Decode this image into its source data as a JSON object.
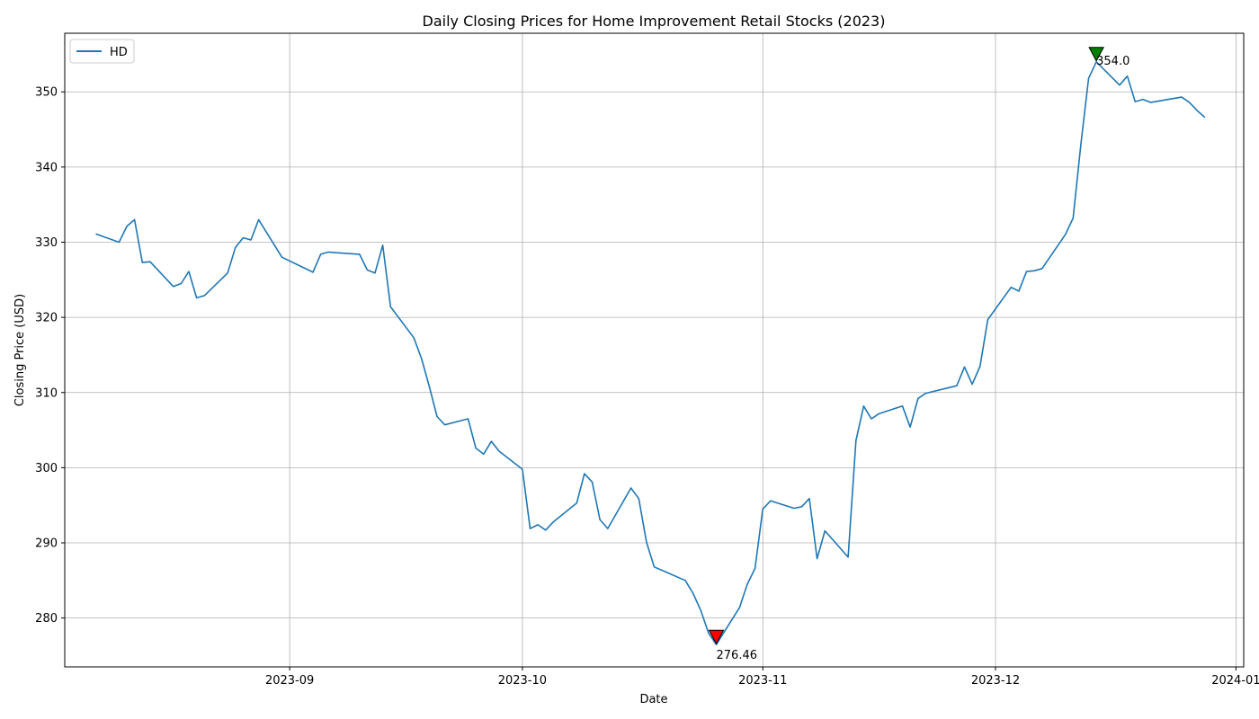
{
  "chart_data": {
    "type": "line",
    "title": "Daily Closing Prices for Home Improvement Retail Stocks (2023)",
    "xlabel": "Date",
    "ylabel": "Closing Price (USD)",
    "xlim": [
      "2023-08-03",
      "2024-01-02"
    ],
    "ylim": [
      273.5,
      357.8
    ],
    "xticks": [
      {
        "date": "2023-09-01",
        "label": "2023-09"
      },
      {
        "date": "2023-10-01",
        "label": "2023-10"
      },
      {
        "date": "2023-11-01",
        "label": "2023-11"
      },
      {
        "date": "2023-12-01",
        "label": "2023-12"
      },
      {
        "date": "2024-01-01",
        "label": "2024-01"
      }
    ],
    "yticks": [
      280,
      290,
      300,
      310,
      320,
      330,
      340,
      350
    ],
    "grid": true,
    "legend_position": "top-left",
    "series": [
      {
        "name": "HD",
        "color": "#1f77b4",
        "x": [
          "2023-08-07",
          "2023-08-10",
          "2023-08-11",
          "2023-08-12",
          "2023-08-13",
          "2023-08-14",
          "2023-08-17",
          "2023-08-18",
          "2023-08-19",
          "2023-08-20",
          "2023-08-21",
          "2023-08-24",
          "2023-08-25",
          "2023-08-26",
          "2023-08-27",
          "2023-08-28",
          "2023-08-31",
          "2023-09-04",
          "2023-09-05",
          "2023-09-06",
          "2023-09-07",
          "2023-09-10",
          "2023-09-11",
          "2023-09-12",
          "2023-09-13",
          "2023-09-14",
          "2023-09-17",
          "2023-09-18",
          "2023-09-19",
          "2023-09-20",
          "2023-09-21",
          "2023-09-24",
          "2023-09-25",
          "2023-09-26",
          "2023-09-27",
          "2023-09-28",
          "2023-10-01",
          "2023-10-02",
          "2023-10-03",
          "2023-10-04",
          "2023-10-05",
          "2023-10-08",
          "2023-10-09",
          "2023-10-10",
          "2023-10-11",
          "2023-10-12",
          "2023-10-15",
          "2023-10-16",
          "2023-10-17",
          "2023-10-18",
          "2023-10-22",
          "2023-10-23",
          "2023-10-24",
          "2023-10-25",
          "2023-10-26",
          "2023-10-29",
          "2023-10-30",
          "2023-10-31",
          "2023-11-01",
          "2023-11-02",
          "2023-11-05",
          "2023-11-06",
          "2023-11-07",
          "2023-11-08",
          "2023-11-09",
          "2023-11-12",
          "2023-11-13",
          "2023-11-14",
          "2023-11-15",
          "2023-11-16",
          "2023-11-19",
          "2023-11-20",
          "2023-11-21",
          "2023-11-22",
          "2023-11-26",
          "2023-11-27",
          "2023-11-28",
          "2023-11-29",
          "2023-11-30",
          "2023-12-03",
          "2023-12-04",
          "2023-12-05",
          "2023-12-06",
          "2023-12-07",
          "2023-12-10",
          "2023-12-11",
          "2023-12-12",
          "2023-12-13",
          "2023-12-14",
          "2023-12-17",
          "2023-12-18",
          "2023-12-19",
          "2023-12-20",
          "2023-12-21",
          "2023-12-25",
          "2023-12-26",
          "2023-12-27",
          "2023-12-28"
        ],
        "values": [
          331.1,
          330.0,
          332.1,
          333.0,
          327.3,
          327.4,
          324.1,
          324.5,
          326.1,
          322.6,
          322.9,
          325.9,
          329.3,
          330.6,
          330.3,
          333.0,
          328.0,
          326.0,
          328.4,
          328.7,
          328.6,
          328.4,
          326.3,
          325.9,
          329.6,
          321.4,
          317.3,
          314.5,
          310.8,
          306.8,
          305.7,
          306.5,
          302.6,
          301.8,
          303.5,
          302.2,
          299.8,
          291.9,
          292.4,
          291.7,
          292.8,
          295.3,
          299.2,
          298.1,
          293.1,
          291.9,
          297.3,
          295.9,
          290.1,
          286.8,
          285.0,
          283.3,
          281.0,
          278.0,
          276.46,
          281.4,
          284.5,
          286.6,
          294.5,
          295.6,
          294.6,
          294.8,
          295.9,
          287.9,
          291.6,
          288.1,
          303.6,
          308.2,
          306.5,
          307.2,
          308.2,
          305.4,
          309.2,
          309.9,
          310.9,
          313.4,
          311.1,
          313.5,
          319.7,
          324.0,
          323.5,
          326.1,
          326.2,
          326.5,
          331.0,
          333.2,
          343.0,
          351.8,
          354.0,
          350.9,
          352.1,
          348.7,
          349.0,
          348.6,
          349.3,
          348.6,
          347.5,
          346.6
        ]
      }
    ],
    "annotations": [
      {
        "type": "max",
        "date": "2023-12-14",
        "value": 354.0,
        "label": "354.0",
        "color": "#008000"
      },
      {
        "type": "min",
        "date": "2023-10-26",
        "value": 276.46,
        "label": "276.46",
        "color": "#ff0000"
      }
    ]
  }
}
